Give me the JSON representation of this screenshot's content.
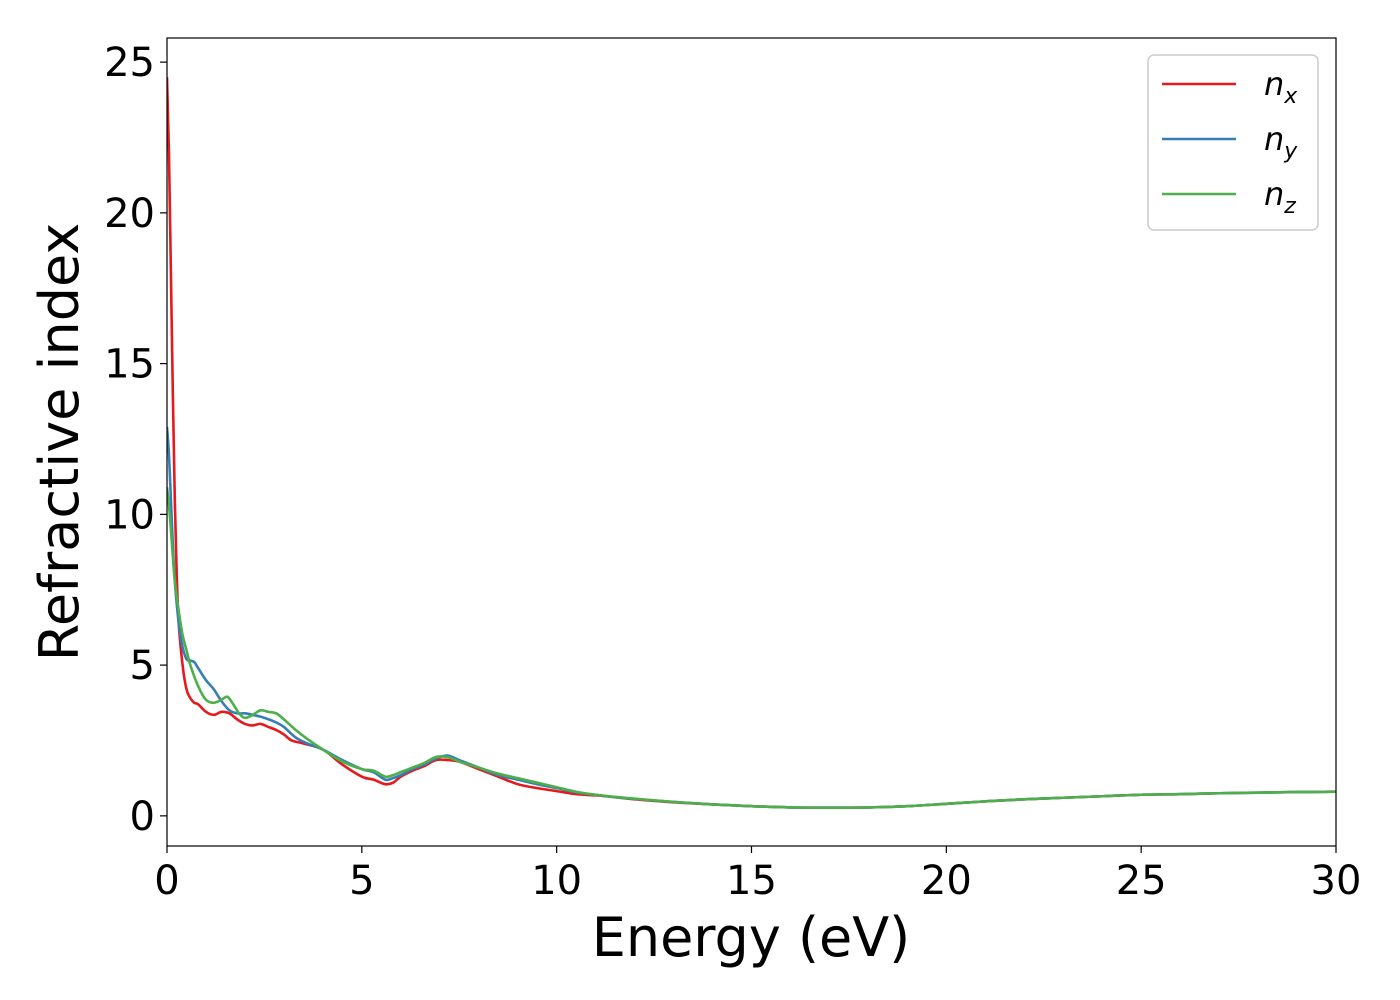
{
  "chart_data": {
    "type": "line",
    "xlabel": "Energy (eV)",
    "ylabel": "Refractive index",
    "xlim": [
      0,
      30
    ],
    "ylim": [
      -1,
      25.8
    ],
    "xticks": [
      0,
      5,
      10,
      15,
      20,
      25,
      30
    ],
    "yticks": [
      0,
      5,
      10,
      15,
      20,
      25
    ],
    "grid": false,
    "legend_position": "top-right",
    "series": [
      {
        "name": "n_x",
        "label_base": "n",
        "label_sub": "x",
        "color": "#e41a1c",
        "x": [
          0.0,
          0.05,
          0.1,
          0.15,
          0.2,
          0.25,
          0.3,
          0.4,
          0.5,
          0.6,
          0.7,
          0.8,
          1.0,
          1.2,
          1.4,
          1.6,
          1.8,
          2.0,
          2.2,
          2.4,
          2.6,
          2.8,
          3.0,
          3.2,
          3.5,
          4.0,
          4.5,
          5.0,
          5.3,
          5.6,
          5.8,
          6.0,
          6.3,
          6.6,
          6.9,
          7.2,
          7.5,
          8.0,
          8.5,
          9.0,
          9.5,
          10.0,
          10.5,
          11.0,
          11.5,
          12.0,
          13.0,
          14.0,
          15.0,
          16.0,
          17.0,
          18.0,
          19.0,
          20.0,
          21.0,
          22.0,
          23.0,
          24.0,
          25.0,
          26.0,
          27.0,
          28.0,
          29.0,
          30.0
        ],
        "y": [
          24.5,
          22.0,
          18.0,
          14.0,
          10.5,
          8.0,
          6.4,
          5.0,
          4.2,
          3.9,
          3.75,
          3.7,
          3.45,
          3.35,
          3.45,
          3.4,
          3.2,
          3.05,
          3.0,
          3.05,
          2.95,
          2.85,
          2.7,
          2.5,
          2.4,
          2.2,
          1.7,
          1.3,
          1.2,
          1.05,
          1.1,
          1.3,
          1.5,
          1.65,
          1.85,
          1.85,
          1.8,
          1.55,
          1.3,
          1.05,
          0.92,
          0.82,
          0.72,
          0.68,
          0.62,
          0.55,
          0.45,
          0.38,
          0.32,
          0.28,
          0.27,
          0.28,
          0.32,
          0.4,
          0.48,
          0.55,
          0.6,
          0.65,
          0.7,
          0.72,
          0.75,
          0.77,
          0.79,
          0.8
        ]
      },
      {
        "name": "n_y",
        "label_base": "n",
        "label_sub": "y",
        "color": "#377eb8",
        "x": [
          0.0,
          0.05,
          0.1,
          0.15,
          0.2,
          0.3,
          0.4,
          0.5,
          0.6,
          0.7,
          0.8,
          1.0,
          1.2,
          1.4,
          1.6,
          1.8,
          2.0,
          2.2,
          2.5,
          2.8,
          3.0,
          3.3,
          3.6,
          4.0,
          4.5,
          5.0,
          5.3,
          5.6,
          5.8,
          6.0,
          6.3,
          6.6,
          6.9,
          7.2,
          7.5,
          8.0,
          8.5,
          9.0,
          9.5,
          10.0,
          10.5,
          11.0,
          11.5,
          12.0,
          13.0,
          14.0,
          15.0,
          16.0,
          17.0,
          18.0,
          19.0,
          20.0,
          21.0,
          22.0,
          23.0,
          24.0,
          25.0,
          26.0,
          27.0,
          28.0,
          29.0,
          30.0
        ],
        "y": [
          12.9,
          12.0,
          10.5,
          9.0,
          7.8,
          6.4,
          5.6,
          5.2,
          5.15,
          5.1,
          4.9,
          4.5,
          4.2,
          3.8,
          3.5,
          3.4,
          3.4,
          3.35,
          3.25,
          3.1,
          2.95,
          2.6,
          2.4,
          2.2,
          1.85,
          1.55,
          1.45,
          1.2,
          1.25,
          1.35,
          1.55,
          1.7,
          1.9,
          2.0,
          1.85,
          1.6,
          1.35,
          1.2,
          1.05,
          0.92,
          0.78,
          0.7,
          0.62,
          0.56,
          0.46,
          0.38,
          0.32,
          0.28,
          0.27,
          0.28,
          0.32,
          0.4,
          0.48,
          0.55,
          0.6,
          0.65,
          0.7,
          0.72,
          0.75,
          0.77,
          0.79,
          0.8
        ]
      },
      {
        "name": "n_z",
        "label_base": "n",
        "label_sub": "z",
        "color": "#4daf4a",
        "x": [
          0.0,
          0.05,
          0.1,
          0.15,
          0.2,
          0.3,
          0.4,
          0.5,
          0.6,
          0.8,
          1.0,
          1.2,
          1.4,
          1.55,
          1.7,
          1.85,
          2.0,
          2.2,
          2.4,
          2.6,
          2.8,
          3.0,
          3.3,
          3.6,
          4.0,
          4.5,
          5.0,
          5.3,
          5.6,
          5.8,
          6.0,
          6.3,
          6.6,
          6.9,
          7.2,
          7.5,
          8.0,
          8.5,
          9.0,
          9.5,
          10.0,
          10.5,
          11.0,
          11.5,
          12.0,
          13.0,
          14.0,
          15.0,
          16.0,
          17.0,
          18.0,
          19.0,
          20.0,
          21.0,
          22.0,
          23.0,
          24.0,
          25.0,
          26.0,
          27.0,
          28.0,
          29.0,
          30.0
        ],
        "y": [
          10.9,
          10.3,
          9.5,
          8.6,
          7.8,
          6.8,
          6.0,
          5.5,
          5.0,
          4.3,
          3.85,
          3.75,
          3.85,
          3.95,
          3.7,
          3.4,
          3.25,
          3.35,
          3.5,
          3.45,
          3.4,
          3.2,
          2.85,
          2.55,
          2.2,
          1.8,
          1.55,
          1.5,
          1.3,
          1.35,
          1.45,
          1.6,
          1.75,
          1.95,
          1.95,
          1.8,
          1.6,
          1.4,
          1.25,
          1.1,
          0.95,
          0.8,
          0.7,
          0.63,
          0.57,
          0.46,
          0.38,
          0.32,
          0.28,
          0.27,
          0.28,
          0.32,
          0.4,
          0.48,
          0.55,
          0.6,
          0.65,
          0.7,
          0.72,
          0.75,
          0.77,
          0.79,
          0.8
        ]
      }
    ]
  }
}
